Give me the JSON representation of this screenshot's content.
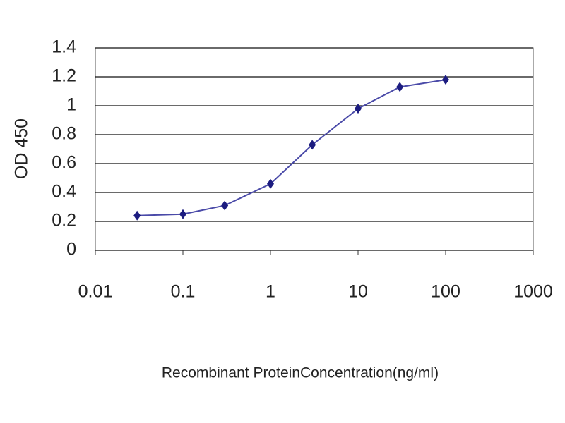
{
  "chart_data": {
    "type": "line",
    "xlabel": "Recombinant ProteinConcentration(ng/ml)",
    "ylabel": "OD 450",
    "x": [
      0.03,
      0.1,
      0.3,
      1,
      3,
      10,
      30,
      100
    ],
    "series": [
      {
        "color": "#1c1c80",
        "line_color": "#4a4aa8",
        "values": [
          0.24,
          0.25,
          0.31,
          0.46,
          0.73,
          0.98,
          1.13,
          1.18
        ]
      }
    ],
    "xscale": "log",
    "xlim": [
      0.01,
      1000
    ],
    "xticks": [
      0.01,
      0.1,
      1,
      10,
      100,
      1000
    ],
    "ylim": [
      0,
      1.4
    ],
    "yticks": [
      0,
      0.2,
      0.4,
      0.6,
      0.8,
      1,
      1.2,
      1.4
    ],
    "grid": true
  }
}
